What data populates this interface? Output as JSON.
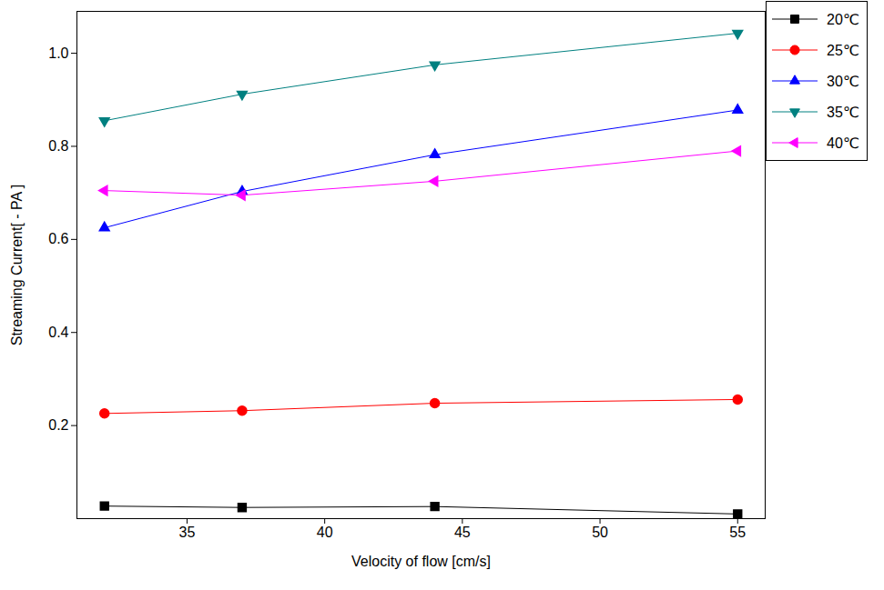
{
  "chart_data": {
    "type": "line",
    "x_label": "Velocity of flow [cm/s]",
    "y_label": "Streaming Current[ - PA ]",
    "x": [
      32,
      37,
      44,
      55
    ],
    "xlim": [
      31,
      56
    ],
    "xticks": [
      35,
      40,
      45,
      50,
      55
    ],
    "ylim": [
      0,
      1.09
    ],
    "yticks": [
      0.2,
      0.4,
      0.6,
      0.8,
      {
        "value": 1,
        "label": "1.0"
      }
    ],
    "grid": false,
    "legend": "upper right",
    "series": [
      {
        "name": "20℃",
        "color": "#000000",
        "marker": "square",
        "values": [
          0.027,
          0.024,
          0.026,
          0.01
        ]
      },
      {
        "name": "25℃",
        "color": "#ff0000",
        "marker": "circle",
        "values": [
          0.226,
          0.232,
          0.248,
          0.256
        ]
      },
      {
        "name": "30℃",
        "color": "#0000ff",
        "marker": "triangle-up",
        "values": [
          0.625,
          0.703,
          0.782,
          0.878
        ]
      },
      {
        "name": "35℃",
        "color": "#008080",
        "marker": "triangle-down",
        "values": [
          0.855,
          0.912,
          0.975,
          1.043
        ]
      },
      {
        "name": "40℃",
        "color": "#ff00ff",
        "marker": "triangle-left",
        "values": [
          0.705,
          0.695,
          0.725,
          0.79
        ]
      }
    ]
  }
}
